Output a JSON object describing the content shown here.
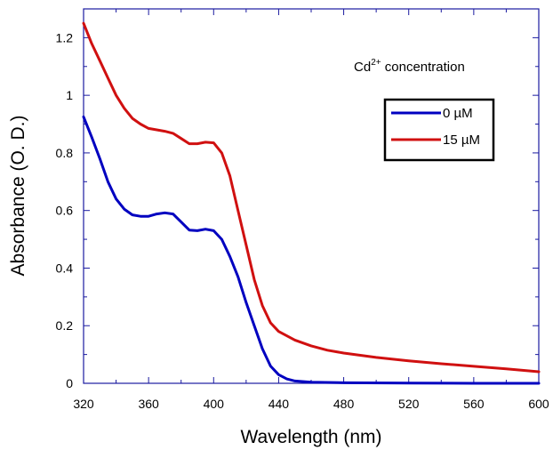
{
  "chart_data": {
    "type": "line",
    "title": "",
    "xlabel": "Wavelength (nm)",
    "ylabel": "Absorbance (O. D.)",
    "xlim": [
      320,
      600
    ],
    "ylim": [
      0,
      1.3
    ],
    "x_ticks": [
      "320",
      "360",
      "400",
      "440",
      "480",
      "520",
      "560",
      "600"
    ],
    "y_ticks": [
      "0",
      "0.2",
      "0.4",
      "0.6",
      "0.8",
      "1",
      "1.2"
    ],
    "grid": false,
    "legend": {
      "title_base": "Cd",
      "title_sup": "2+",
      "title_rest": " concentration",
      "placement": "top-right"
    },
    "series": [
      {
        "name": "0 µM",
        "color": "#0000c0",
        "points": [
          [
            320,
            0.925
          ],
          [
            325,
            0.855
          ],
          [
            330,
            0.78
          ],
          [
            335,
            0.7
          ],
          [
            340,
            0.64
          ],
          [
            345,
            0.605
          ],
          [
            350,
            0.585
          ],
          [
            355,
            0.58
          ],
          [
            360,
            0.58
          ],
          [
            365,
            0.588
          ],
          [
            370,
            0.592
          ],
          [
            375,
            0.588
          ],
          [
            380,
            0.56
          ],
          [
            385,
            0.532
          ],
          [
            390,
            0.53
          ],
          [
            395,
            0.535
          ],
          [
            400,
            0.53
          ],
          [
            405,
            0.5
          ],
          [
            410,
            0.44
          ],
          [
            415,
            0.37
          ],
          [
            420,
            0.28
          ],
          [
            425,
            0.2
          ],
          [
            430,
            0.12
          ],
          [
            435,
            0.06
          ],
          [
            440,
            0.03
          ],
          [
            445,
            0.015
          ],
          [
            450,
            0.008
          ],
          [
            460,
            0.004
          ],
          [
            480,
            0.002
          ],
          [
            520,
            0.001
          ],
          [
            560,
            0.0
          ],
          [
            600,
            0.0
          ]
        ]
      },
      {
        "name": "15 µM",
        "color": "#d01010",
        "points": [
          [
            320,
            1.25
          ],
          [
            325,
            1.18
          ],
          [
            330,
            1.12
          ],
          [
            335,
            1.06
          ],
          [
            340,
            1.0
          ],
          [
            345,
            0.955
          ],
          [
            350,
            0.92
          ],
          [
            355,
            0.9
          ],
          [
            360,
            0.885
          ],
          [
            365,
            0.88
          ],
          [
            370,
            0.875
          ],
          [
            375,
            0.868
          ],
          [
            380,
            0.85
          ],
          [
            385,
            0.832
          ],
          [
            390,
            0.832
          ],
          [
            395,
            0.837
          ],
          [
            400,
            0.835
          ],
          [
            405,
            0.8
          ],
          [
            410,
            0.72
          ],
          [
            415,
            0.6
          ],
          [
            420,
            0.48
          ],
          [
            425,
            0.36
          ],
          [
            430,
            0.27
          ],
          [
            435,
            0.21
          ],
          [
            440,
            0.18
          ],
          [
            450,
            0.15
          ],
          [
            460,
            0.13
          ],
          [
            470,
            0.115
          ],
          [
            480,
            0.105
          ],
          [
            500,
            0.09
          ],
          [
            520,
            0.078
          ],
          [
            540,
            0.068
          ],
          [
            560,
            0.059
          ],
          [
            580,
            0.05
          ],
          [
            600,
            0.04
          ]
        ]
      }
    ]
  }
}
